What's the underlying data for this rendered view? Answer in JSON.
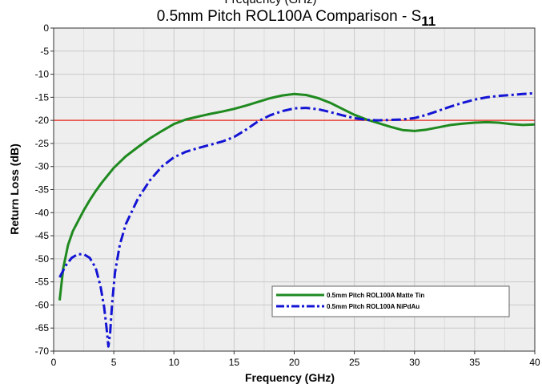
{
  "chart_data": {
    "type": "line",
    "title_top_cut": "Frequency (GHz)",
    "title": "0.5mm Pitch ROL100A Comparison - S",
    "title_subscript": "11",
    "xlabel": "Frequency (GHz)",
    "ylabel": "Return Loss (dB)",
    "xlim": [
      0,
      40
    ],
    "ylim": [
      -70,
      0
    ],
    "xticks": [
      "0",
      "5",
      "10",
      "15",
      "20",
      "25",
      "30",
      "35",
      "40"
    ],
    "yticks": [
      "0",
      "-5",
      "-10",
      "-15",
      "-20",
      "-25",
      "-30",
      "-35",
      "-40",
      "-45",
      "-50",
      "-55",
      "-60",
      "-65",
      "-70"
    ],
    "grid": true,
    "legend_position": "bottom-right",
    "reference_line": {
      "y": -20,
      "color": "#e8463c"
    },
    "series": [
      {
        "name": "0.5mm Pitch ROL100A Matte Tin",
        "color": "#1f8a1f",
        "style": "solid",
        "x": [
          0.5,
          0.8,
          1.2,
          1.6,
          2,
          2.5,
          3,
          3.5,
          4,
          5,
          6,
          7,
          8,
          9,
          10,
          11,
          12,
          13,
          14,
          15,
          16,
          17,
          18,
          19,
          20,
          21,
          22,
          23,
          24,
          25,
          26,
          27,
          28,
          29,
          30,
          31,
          32,
          33,
          34,
          35,
          36,
          37,
          38,
          39,
          40
        ],
        "y": [
          -59,
          -52,
          -47,
          -44,
          -42,
          -39.5,
          -37.3,
          -35.3,
          -33.5,
          -30.3,
          -27.8,
          -25.8,
          -23.9,
          -22.3,
          -20.8,
          -19.8,
          -19.2,
          -18.6,
          -18.1,
          -17.5,
          -16.8,
          -16,
          -15.2,
          -14.6,
          -14.3,
          -14.5,
          -15.2,
          -16.2,
          -17.5,
          -18.8,
          -19.8,
          -20.6,
          -21.4,
          -22.1,
          -22.3,
          -22,
          -21.5,
          -21,
          -20.7,
          -20.5,
          -20.4,
          -20.5,
          -20.8,
          -21,
          -20.9
        ]
      },
      {
        "name": "0.5mm Pitch ROL100A NiPdAu",
        "color": "#1414d4",
        "style": "dash-dot",
        "x": [
          0.5,
          1,
          1.5,
          2,
          2.5,
          3,
          3.5,
          3.9,
          4.2,
          4.4,
          4.55,
          4.7,
          4.85,
          5.1,
          5.5,
          6,
          7,
          8,
          9,
          10,
          11,
          12,
          13,
          14,
          15,
          16,
          17,
          18,
          19,
          20,
          21,
          22,
          23,
          24,
          25,
          26,
          27,
          28,
          29,
          30,
          31,
          32,
          33,
          34,
          35,
          36,
          37,
          38,
          39,
          40
        ],
        "y": [
          -54,
          -51.5,
          -49.8,
          -49,
          -49,
          -49.8,
          -52,
          -56,
          -60.5,
          -65,
          -69,
          -66,
          -60,
          -53,
          -47,
          -42.5,
          -37,
          -33,
          -30,
          -28,
          -26.8,
          -26,
          -25.3,
          -24.6,
          -23.6,
          -22,
          -20.2,
          -18.9,
          -18,
          -17.4,
          -17.3,
          -17.6,
          -18.2,
          -18.9,
          -19.5,
          -19.9,
          -20,
          -19.9,
          -19.8,
          -19.5,
          -18.8,
          -17.9,
          -17,
          -16.2,
          -15.5,
          -15,
          -14.7,
          -14.5,
          -14.3,
          -14.1
        ]
      }
    ]
  }
}
